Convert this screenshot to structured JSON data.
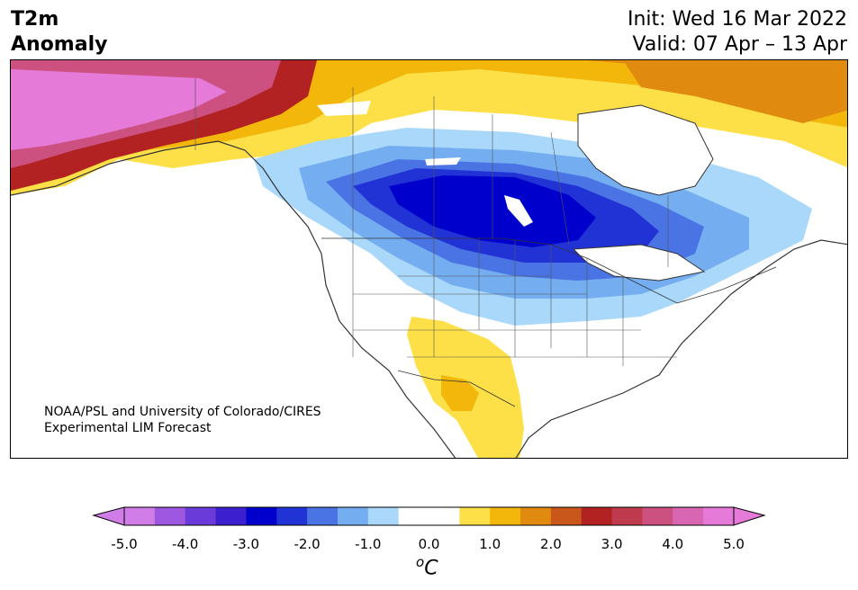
{
  "title": {
    "left_line1": "T2m",
    "left_line2": "Anomaly",
    "init": "Init: Wed 16 Mar 2022",
    "valid": "Valid: 07 Apr – 13 Apr"
  },
  "credit": {
    "line1": "NOAA/PSL and University of Colorado/CIRES",
    "line2": "Experimental LIM Forecast"
  },
  "colorbar": {
    "unit_base": "C",
    "unit_sup": "o",
    "ticks": [
      "-5.0",
      "-4.0",
      "-3.0",
      "-2.0",
      "-1.0",
      "0.0",
      "1.0",
      "2.0",
      "3.0",
      "4.0",
      "5.0"
    ],
    "colors": [
      "#d17de8",
      "#9d57e0",
      "#6a3bd9",
      "#3c20cf",
      "#0000cc",
      "#2233d6",
      "#4a74e4",
      "#74aef0",
      "#a9d8fa",
      "#ffffff",
      "#ffffff",
      "#fde047",
      "#f2b70a",
      "#e08a10",
      "#c9561a",
      "#b22222",
      "#be3a4c",
      "#cc5080",
      "#d866b2",
      "#e57ad8"
    ],
    "min_color": "#d17de8",
    "max_color": "#e57ad8"
  }
}
